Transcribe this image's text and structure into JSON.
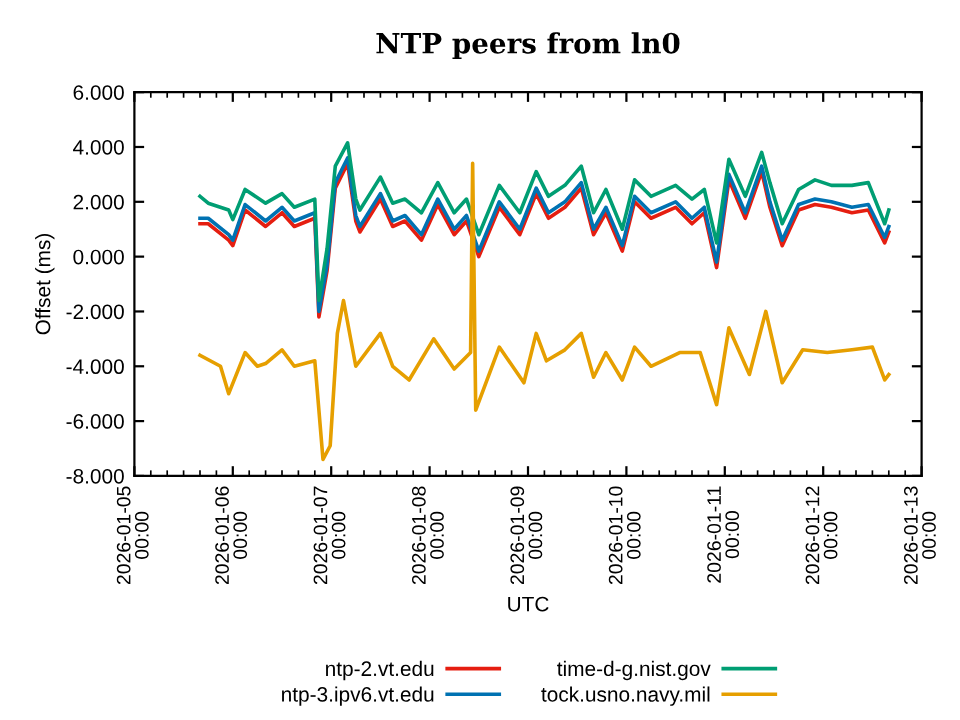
{
  "chart_data": {
    "type": "line",
    "title": "NTP peers from ln0",
    "xlabel": "UTC",
    "ylabel": "Offset (ms)",
    "xlim": [
      "2026-01-05",
      "2026-01-13"
    ],
    "xticks": [
      {
        "value": "2026-01-05",
        "label": "2026-01-05\n00:00"
      },
      {
        "value": "2026-01-06",
        "label": "2026-01-06\n00:00"
      },
      {
        "value": "2026-01-07",
        "label": "2026-01-07\n00:00"
      },
      {
        "value": "2026-01-08",
        "label": "2026-01-08\n00:00"
      },
      {
        "value": "2026-01-09",
        "label": "2026-01-09\n00:00"
      },
      {
        "value": "2026-01-10",
        "label": "2026-01-10\n00:00"
      },
      {
        "value": "2026-01-11",
        "label": "2026-01-11\n00:00"
      },
      {
        "value": "2026-01-12",
        "label": "2026-01-12\n00:00"
      },
      {
        "value": "2026-01-13",
        "label": "2026-01-13\n00:00"
      }
    ],
    "ylim": [
      -8,
      6
    ],
    "yticks": [
      {
        "value": -8,
        "label": "-8.000"
      },
      {
        "value": -6,
        "label": "-6.000"
      },
      {
        "value": -4,
        "label": "-4.000"
      },
      {
        "value": -2,
        "label": "-2.000"
      },
      {
        "value": 0,
        "label": "0.000"
      },
      {
        "value": 2,
        "label": "2.000"
      },
      {
        "value": 4,
        "label": "4.000"
      },
      {
        "value": 6,
        "label": "6.000"
      }
    ],
    "legend": "bottom",
    "grid": false,
    "marker": "none",
    "line_style": "solid",
    "x": [
      "2026-01-05T16:00",
      "2026-01-05T18:00",
      "2026-01-05T23:00",
      "2026-01-06T00:00",
      "2026-01-06T03:00",
      "2026-01-06T08:00",
      "2026-01-06T12:00",
      "2026-01-06T15:00",
      "2026-01-06T20:00",
      "2026-01-06T21:00",
      "2026-01-06T23:00",
      "2026-01-07T01:00",
      "2026-01-07T04:00",
      "2026-01-07T06:00",
      "2026-01-07T07:00",
      "2026-01-07T12:00",
      "2026-01-07T15:00",
      "2026-01-07T18:00",
      "2026-01-07T22:00",
      "2026-01-08T02:00",
      "2026-01-08T06:00",
      "2026-01-08T09:00",
      "2026-01-08T12:00",
      "2026-01-08T17:00",
      "2026-01-08T22:00",
      "2026-01-09T02:00",
      "2026-01-09T05:00",
      "2026-01-09T09:00",
      "2026-01-09T13:00",
      "2026-01-09T16:00",
      "2026-01-09T19:00",
      "2026-01-09T23:00",
      "2026-01-10T02:00",
      "2026-01-10T06:00",
      "2026-01-10T12:00",
      "2026-01-10T16:00",
      "2026-01-10T19:00",
      "2026-01-10T22:00",
      "2026-01-11T01:00",
      "2026-01-11T05:00",
      "2026-01-11T09:00",
      "2026-01-11T11:00",
      "2026-01-11T14:00",
      "2026-01-11T18:00",
      "2026-01-11T22:00",
      "2026-01-12T02:00",
      "2026-01-12T07:00",
      "2026-01-12T11:00",
      "2026-01-12T15:00",
      "2026-01-12T16:00"
    ],
    "series": [
      {
        "name": "ntp-2.vt.edu",
        "color": "#e51e10",
        "values": [
          1.2,
          1.2,
          0.6,
          0.4,
          1.7,
          1.1,
          1.6,
          1.1,
          1.4,
          -2.2,
          -0.5,
          2.5,
          3.4,
          1.3,
          0.9,
          2.1,
          1.1,
          1.3,
          0.6,
          1.9,
          0.8,
          1.3,
          0.0,
          1.8,
          0.8,
          2.3,
          1.4,
          1.8,
          2.5,
          0.8,
          1.6,
          0.2,
          2.0,
          1.4,
          1.8,
          1.2,
          1.6,
          -0.4,
          2.8,
          1.4,
          3.1,
          1.8,
          0.4,
          1.7,
          1.9,
          1.8,
          1.6,
          1.7,
          0.5,
          0.9
        ]
      },
      {
        "name": "ntp-3.ipv6.vt.edu",
        "color": "#0072b2",
        "values": [
          1.4,
          1.4,
          0.8,
          0.6,
          1.9,
          1.3,
          1.8,
          1.3,
          1.6,
          -2.0,
          -0.3,
          2.7,
          3.6,
          1.5,
          1.1,
          2.3,
          1.3,
          1.5,
          0.8,
          2.1,
          1.0,
          1.5,
          0.2,
          2.0,
          1.0,
          2.5,
          1.6,
          2.0,
          2.7,
          1.0,
          1.8,
          0.4,
          2.2,
          1.6,
          2.0,
          1.4,
          1.8,
          -0.2,
          3.0,
          1.6,
          3.3,
          2.0,
          0.6,
          1.9,
          2.1,
          2.0,
          1.8,
          1.9,
          0.7,
          1.1
        ]
      },
      {
        "name": "time-d-g.nist.gov",
        "color": "#009e73",
        "values": [
          2.2,
          1.95,
          1.7,
          1.35,
          2.45,
          1.95,
          2.3,
          1.8,
          2.1,
          -1.6,
          0.3,
          3.3,
          4.15,
          2.1,
          1.7,
          2.9,
          1.95,
          2.1,
          1.6,
          2.7,
          1.6,
          2.1,
          0.8,
          2.6,
          1.6,
          3.1,
          2.2,
          2.6,
          3.3,
          1.6,
          2.45,
          1.0,
          2.8,
          2.2,
          2.6,
          2.1,
          2.45,
          0.5,
          3.55,
          2.2,
          3.8,
          2.7,
          1.2,
          2.45,
          2.8,
          2.6,
          2.6,
          2.7,
          1.2,
          1.7
        ]
      },
      {
        "name": "tock.usno.navy.mil",
        "color": "#e69f00",
        "x": [
          "2026-01-05T16:00",
          "2026-01-05T21:00",
          "2026-01-05T23:00",
          "2026-01-06T03:00",
          "2026-01-06T06:00",
          "2026-01-06T08:00",
          "2026-01-06T12:00",
          "2026-01-06T15:00",
          "2026-01-06T20:00",
          "2026-01-06T22:00",
          "2026-01-06T23:45",
          "2026-01-07T01:30",
          "2026-01-07T03:00",
          "2026-01-07T06:00",
          "2026-01-07T12:00",
          "2026-01-07T15:00",
          "2026-01-07T19:00",
          "2026-01-08T01:00",
          "2026-01-08T06:00",
          "2026-01-08T10:00",
          "2026-01-08T10:30",
          "2026-01-08T11:15",
          "2026-01-08T17:00",
          "2026-01-08T23:00",
          "2026-01-09T02:00",
          "2026-01-09T04:30",
          "2026-01-09T09:00",
          "2026-01-09T13:00",
          "2026-01-09T16:00",
          "2026-01-09T19:00",
          "2026-01-09T23:00",
          "2026-01-10T02:00",
          "2026-01-10T06:00",
          "2026-01-10T13:00",
          "2026-01-10T18:00",
          "2026-01-10T22:00",
          "2026-01-11T01:00",
          "2026-01-11T06:00",
          "2026-01-11T10:00",
          "2026-01-11T14:00",
          "2026-01-11T19:00",
          "2026-01-12T01:00",
          "2026-01-12T07:00",
          "2026-01-12T12:00",
          "2026-01-12T15:00",
          "2026-01-12T16:00"
        ],
        "values": [
          -3.6,
          -4.0,
          -5.0,
          -3.5,
          -4.0,
          -3.9,
          -3.4,
          -4.0,
          -3.8,
          -7.4,
          -6.9,
          -2.8,
          -1.6,
          -4.0,
          -2.8,
          -4.0,
          -4.5,
          -3.0,
          -4.1,
          -3.5,
          3.4,
          -5.6,
          -3.3,
          -4.6,
          -2.8,
          -3.8,
          -3.4,
          -2.8,
          -4.4,
          -3.5,
          -4.5,
          -3.3,
          -4.0,
          -3.5,
          -3.5,
          -5.4,
          -2.6,
          -4.3,
          -2.0,
          -4.6,
          -3.4,
          -3.5,
          -3.4,
          -3.3,
          -4.5,
          -4.3
        ]
      }
    ]
  }
}
